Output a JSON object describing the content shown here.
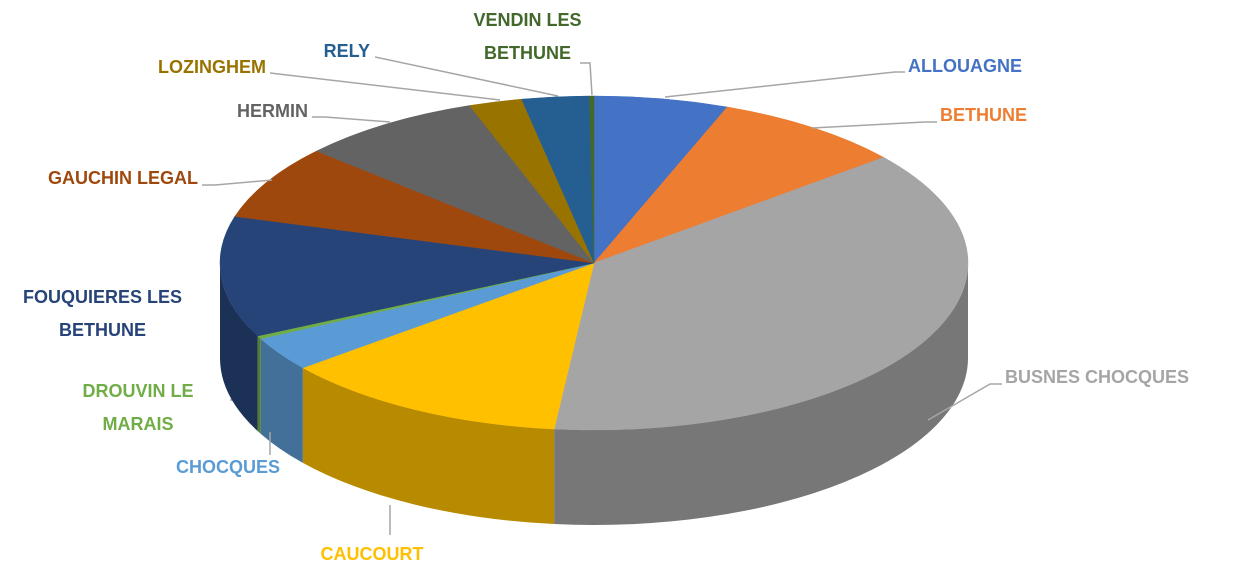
{
  "chart_data": {
    "type": "pie3d",
    "categories": [
      "ALLOUAGNE",
      "BETHUNE",
      "BUSNES CHOCQUES",
      "CAUCOURT",
      "CHOCQUES",
      "DROUVIN LE MARAIS",
      "FOUQUIERES LES BETHUNE",
      "GAUCHIN LEGAL",
      "HERMIN",
      "LOZINGHEM",
      "RELY",
      "VENDIN LES BETHUNE"
    ],
    "values": [
      5.8,
      8.3,
      37.6,
      12.5,
      3.3,
      0.3,
      11.7,
      7.2,
      7.9,
      2.3,
      2.9,
      0.2
    ],
    "colors": [
      "#4472c4",
      "#ed7d31",
      "#a5a5a5",
      "#ffc000",
      "#5b9bd5",
      "#70ad47",
      "#264478",
      "#9e480e",
      "#636363",
      "#997300",
      "#255e91",
      "#43682b"
    ]
  }
}
